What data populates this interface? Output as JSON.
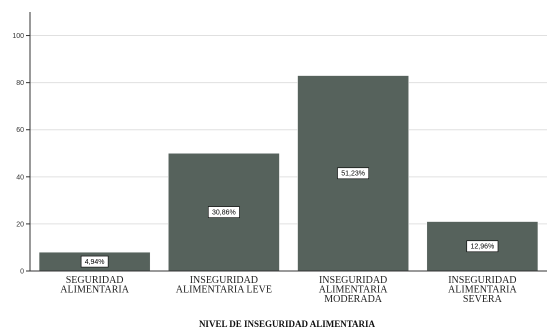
{
  "chart_data": {
    "type": "bar",
    "categories": [
      [
        "SEGURIDAD",
        "ALIMENTARIA"
      ],
      [
        "INSEGURIDAD",
        "ALIMENTARIA LEVE"
      ],
      [
        "INSEGURIDAD",
        "ALIMENTARIA",
        "MODERADA"
      ],
      [
        "INSEGURIDAD",
        "ALIMENTARIA",
        "SEVERA"
      ]
    ],
    "values": [
      8,
      50,
      83,
      21
    ],
    "data_labels": [
      "4,94%",
      "30,86%",
      "51,23%",
      "12,96%"
    ],
    "xlabel": "NIVEL DE INSEGURIDAD ALIMENTARIA",
    "ylabel": "",
    "ylim": [
      0,
      110
    ],
    "yticks": [
      0,
      20,
      40,
      60,
      80,
      100
    ],
    "grid": true,
    "colors": {
      "bar": "#56625c",
      "bar_edge": "#ffffff",
      "grid": "#e0e0e0",
      "axis": "#333333"
    }
  }
}
